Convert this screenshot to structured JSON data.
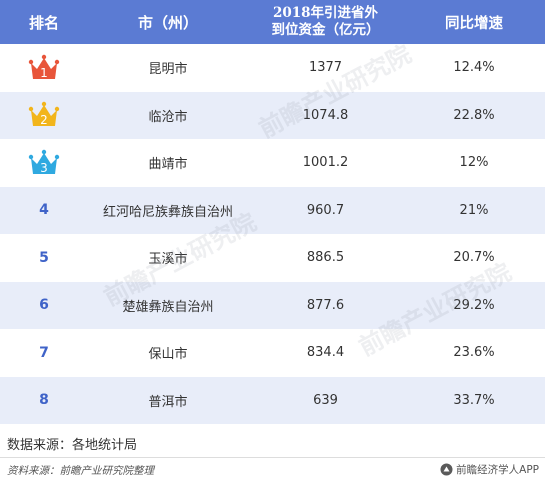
{
  "header": {
    "rank": "排名",
    "city": "市（州）",
    "investment_line1": "2018年引进省外",
    "investment_line2": "到位资金（亿元）",
    "growth": "同比增速"
  },
  "rows": [
    {
      "rank": "1",
      "city": "昆明市",
      "investment": "1377",
      "growth": "12.4%",
      "crown_color": "#e8553a"
    },
    {
      "rank": "2",
      "city": "临沧市",
      "investment": "1074.8",
      "growth": "22.8%",
      "crown_color": "#f2b51c"
    },
    {
      "rank": "3",
      "city": "曲靖市",
      "investment": "1001.2",
      "growth": "12%",
      "crown_color": "#2fa9e0"
    },
    {
      "rank": "4",
      "city": "红河哈尼族彝族自治州",
      "investment": "960.7",
      "growth": "21%"
    },
    {
      "rank": "5",
      "city": "玉溪市",
      "investment": "886.5",
      "growth": "20.7%"
    },
    {
      "rank": "6",
      "city": "楚雄彝族自治州",
      "investment": "877.6",
      "growth": "29.2%"
    },
    {
      "rank": "7",
      "city": "保山市",
      "investment": "834.4",
      "growth": "23.6%"
    },
    {
      "rank": "8",
      "city": "普洱市",
      "investment": "639",
      "growth": "33.7%"
    }
  ],
  "source_note": "数据来源：各地统计局",
  "footer": {
    "left": "资料来源：前瞻产业研究院整理",
    "right": "前瞻经济学人APP"
  },
  "watermark_text": "前瞻产业研究院",
  "colors": {
    "header_bg": "#5b7bd3",
    "alt_row_bg": "#e8edf9",
    "rank_text": "#3f63c8"
  }
}
